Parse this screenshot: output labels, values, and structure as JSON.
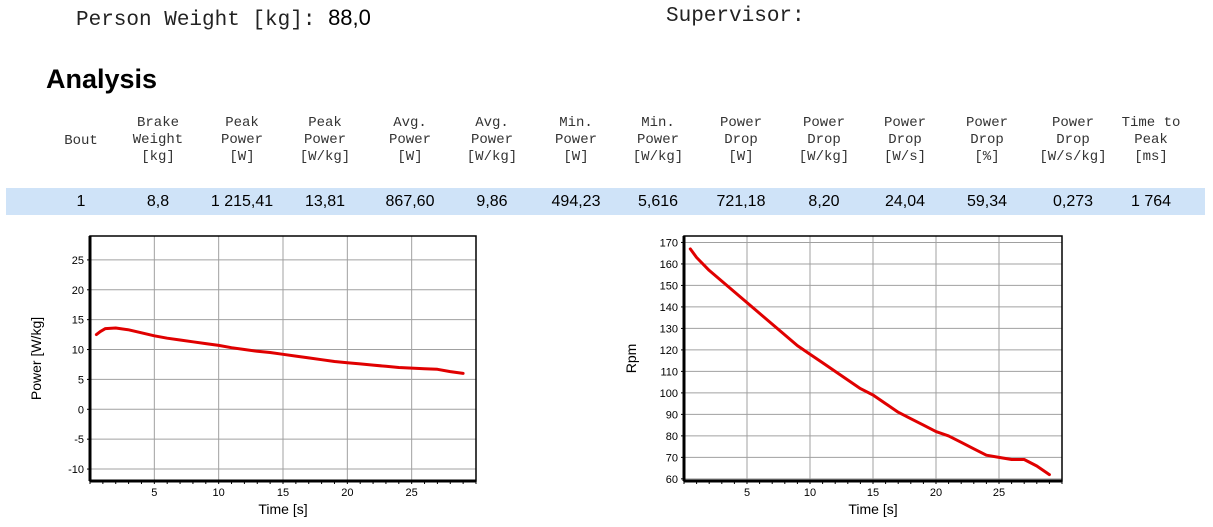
{
  "header": {
    "person_weight_label": "Person Weight [kg]:",
    "person_weight_value": "88,0",
    "supervisor_label": "Supervisor:"
  },
  "section": {
    "title": "Analysis"
  },
  "table": {
    "columns": [
      {
        "lines": [
          "Bout"
        ]
      },
      {
        "lines": [
          "Brake",
          "Weight",
          "[kg]"
        ]
      },
      {
        "lines": [
          "Peak",
          "Power",
          "[W]"
        ]
      },
      {
        "lines": [
          "Peak",
          "Power",
          "[W/kg]"
        ]
      },
      {
        "lines": [
          "Avg.",
          "Power",
          "[W]"
        ]
      },
      {
        "lines": [
          "Avg.",
          "Power",
          "[W/kg]"
        ]
      },
      {
        "lines": [
          "Min.",
          "Power",
          "[W]"
        ]
      },
      {
        "lines": [
          "Min.",
          "Power",
          "[W/kg]"
        ]
      },
      {
        "lines": [
          "Power",
          "Drop",
          "[W]"
        ]
      },
      {
        "lines": [
          "Power",
          "Drop",
          "[W/kg]"
        ]
      },
      {
        "lines": [
          "Power",
          "Drop",
          "[W/s]"
        ]
      },
      {
        "lines": [
          "Power",
          "Drop",
          "[%]"
        ]
      },
      {
        "lines": [
          "Power",
          "Drop",
          "[W/s/kg]"
        ]
      },
      {
        "lines": [
          "Time to",
          "Peak",
          "[ms]"
        ]
      }
    ],
    "rows": [
      [
        "1",
        "8,8",
        "1 215,41",
        "13,81",
        "867,60",
        "9,86",
        "494,23",
        "5,616",
        "721,18",
        "8,20",
        "24,04",
        "59,34",
        "0,273",
        "1 764"
      ]
    ]
  },
  "chart_data": [
    {
      "type": "line",
      "xlabel": "Time [s]",
      "ylabel": "Power [W/kg]",
      "xlim": [
        0,
        30
      ],
      "ylim": [
        -12,
        29
      ],
      "xticks": [
        5,
        10,
        15,
        20,
        25
      ],
      "yticks": [
        -10,
        -5,
        0,
        5,
        10,
        15,
        20,
        25
      ],
      "grid": true,
      "series": [
        {
          "color": "#e00000",
          "x": [
            0.5,
            0.8,
            1.2,
            2.0,
            3.0,
            4.0,
            5.0,
            6.0,
            7.0,
            8.0,
            9.0,
            10.0,
            11.0,
            12.0,
            13.0,
            14.0,
            15.0,
            16.0,
            17.0,
            18.0,
            19.0,
            20.0,
            21.0,
            22.0,
            23.0,
            24.0,
            25.0,
            26.0,
            27.0,
            28.0,
            29.0
          ],
          "y": [
            12.5,
            13.0,
            13.5,
            13.6,
            13.3,
            12.8,
            12.3,
            11.9,
            11.6,
            11.3,
            11.0,
            10.7,
            10.3,
            10.0,
            9.7,
            9.5,
            9.2,
            8.9,
            8.6,
            8.3,
            8.0,
            7.8,
            7.6,
            7.4,
            7.2,
            7.0,
            6.9,
            6.8,
            6.7,
            6.3,
            6.0
          ]
        }
      ]
    },
    {
      "type": "line",
      "xlabel": "Time [s]",
      "ylabel": "Rpm",
      "xlim": [
        0,
        30
      ],
      "ylim": [
        59,
        173
      ],
      "xticks": [
        5,
        10,
        15,
        20,
        25
      ],
      "yticks": [
        60,
        70,
        80,
        90,
        100,
        110,
        120,
        130,
        140,
        150,
        160,
        170
      ],
      "grid": true,
      "series": [
        {
          "color": "#e00000",
          "x": [
            0.5,
            1.0,
            2.0,
            3.0,
            4.0,
            5.0,
            6.0,
            7.0,
            8.0,
            9.0,
            10.0,
            11.0,
            12.0,
            13.0,
            14.0,
            15.0,
            16.0,
            17.0,
            18.0,
            19.0,
            20.0,
            21.0,
            22.0,
            23.0,
            24.0,
            25.0,
            26.0,
            27.0,
            28.0,
            29.0
          ],
          "y": [
            167,
            163,
            157,
            152,
            147,
            142,
            137,
            132,
            127,
            122,
            118,
            114,
            110,
            106,
            102,
            99,
            95,
            91,
            88,
            85,
            82,
            80,
            77,
            74,
            71,
            70,
            69,
            69,
            66,
            62
          ]
        }
      ]
    }
  ]
}
